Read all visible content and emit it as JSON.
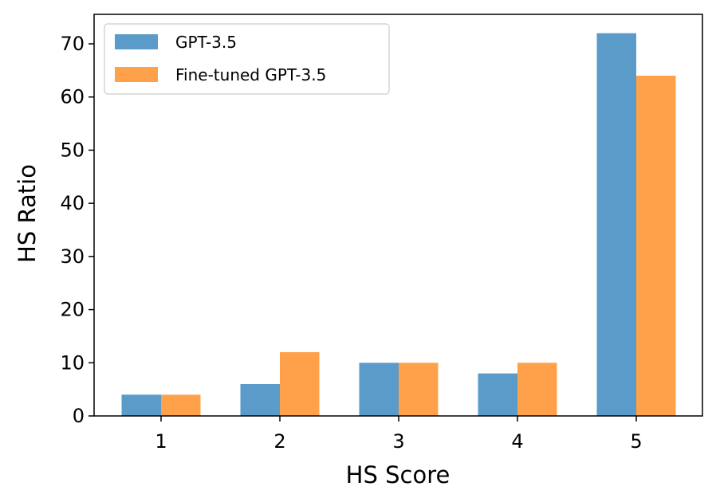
{
  "chart_data": {
    "type": "bar",
    "categories": [
      "1",
      "2",
      "3",
      "4",
      "5"
    ],
    "series": [
      {
        "name": "GPT-3.5",
        "values": [
          4,
          6,
          10,
          8,
          72
        ],
        "color": "#5a9bc9"
      },
      {
        "name": "Fine-tuned GPT-3.5",
        "values": [
          4,
          12,
          10,
          10,
          64
        ],
        "color": "#ffa04a"
      }
    ],
    "title": "",
    "xlabel": "HS Score",
    "ylabel": "HS Ratio",
    "ylim": [
      0,
      75
    ],
    "yticks": [
      "0",
      "10",
      "20",
      "30",
      "40",
      "50",
      "60",
      "70"
    ],
    "grid": false,
    "legend_position": "top-left"
  }
}
